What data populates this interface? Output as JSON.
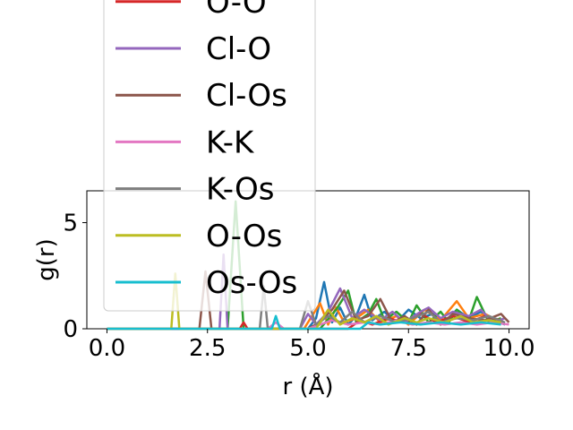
{
  "chart_data": {
    "type": "line",
    "xlabel": "r (Å)",
    "ylabel": "g(r)",
    "xlim": [
      -0.5,
      10.5
    ],
    "ylim": [
      0,
      6.5
    ],
    "xticks": [
      "0.0",
      "2.5",
      "5.0",
      "7.5",
      "10.0"
    ],
    "yticks": [
      "0",
      "5"
    ],
    "grid": false,
    "legend_placement": "upper-left, overflowing above the axes",
    "series": [
      {
        "name": "",
        "color": "#1f77b4",
        "points": [
          [
            0,
            0
          ],
          [
            5.0,
            0
          ],
          [
            5.2,
            0.5
          ],
          [
            5.4,
            2.2
          ],
          [
            5.6,
            0.3
          ],
          [
            5.8,
            1.0
          ],
          [
            6.0,
            0.2
          ],
          [
            6.2,
            0.6
          ],
          [
            6.4,
            1.6
          ],
          [
            6.6,
            0.4
          ],
          [
            6.9,
            0.8
          ],
          [
            7.2,
            0.3
          ],
          [
            7.5,
            0.9
          ],
          [
            7.8,
            0.5
          ],
          [
            8.1,
            0.7
          ],
          [
            8.4,
            0.3
          ],
          [
            8.7,
            0.9
          ],
          [
            9.0,
            0.5
          ],
          [
            9.3,
            0.8
          ],
          [
            9.6,
            0.4
          ],
          [
            9.9,
            0.2
          ]
        ]
      },
      {
        "name": "",
        "color": "#ff7f0e",
        "points": [
          [
            0,
            0
          ],
          [
            4.9,
            0
          ],
          [
            5.1,
            0.6
          ],
          [
            5.3,
            1.2
          ],
          [
            5.5,
            0.2
          ],
          [
            5.7,
            1.0
          ],
          [
            5.9,
            0.3
          ],
          [
            6.2,
            0.5
          ],
          [
            6.5,
            0.9
          ],
          [
            6.8,
            0.3
          ],
          [
            7.2,
            0.6
          ],
          [
            7.5,
            0.2
          ],
          [
            7.9,
            0.9
          ],
          [
            8.3,
            0.4
          ],
          [
            8.7,
            1.3
          ],
          [
            9.0,
            0.5
          ],
          [
            9.4,
            0.7
          ],
          [
            9.8,
            0.3
          ]
        ]
      },
      {
        "name": "",
        "color": "#2ca02c",
        "points": [
          [
            0,
            0
          ],
          [
            3.0,
            0
          ],
          [
            3.2,
            6.0
          ],
          [
            3.4,
            0
          ],
          [
            5.3,
            0
          ],
          [
            5.7,
            0.9
          ],
          [
            6.0,
            1.8
          ],
          [
            6.2,
            0.3
          ],
          [
            6.5,
            0.7
          ],
          [
            6.7,
            1.4
          ],
          [
            6.9,
            0.4
          ],
          [
            7.2,
            0.8
          ],
          [
            7.5,
            0.3
          ],
          [
            7.7,
            1.1
          ],
          [
            8.0,
            0.3
          ],
          [
            8.3,
            0.8
          ],
          [
            8.5,
            0.3
          ],
          [
            8.7,
            0.9
          ],
          [
            9.0,
            0.4
          ],
          [
            9.2,
            1.5
          ],
          [
            9.5,
            0.3
          ],
          [
            9.8,
            0.5
          ]
        ]
      },
      {
        "name": "O-O",
        "color": "#d62728",
        "points": [
          [
            0,
            0
          ],
          [
            3.3,
            0
          ],
          [
            3.4,
            0.3
          ],
          [
            3.5,
            0
          ],
          [
            6.0,
            0
          ],
          [
            6.3,
            0.4
          ],
          [
            6.6,
            0.2
          ],
          [
            7.0,
            0.5
          ],
          [
            7.4,
            0.3
          ],
          [
            7.8,
            0.7
          ],
          [
            8.2,
            0.3
          ],
          [
            8.6,
            0.6
          ],
          [
            9.0,
            0.3
          ],
          [
            9.4,
            0.6
          ],
          [
            9.8,
            0.4
          ]
        ]
      },
      {
        "name": "Cl-O",
        "color": "#9467bd",
        "points": [
          [
            0,
            0
          ],
          [
            2.8,
            0
          ],
          [
            2.9,
            3.5
          ],
          [
            3.0,
            0
          ],
          [
            4.8,
            0
          ],
          [
            5.0,
            0.7
          ],
          [
            5.2,
            0.2
          ],
          [
            5.5,
            0.8
          ],
          [
            5.8,
            1.9
          ],
          [
            6.1,
            0.5
          ],
          [
            6.4,
            0.9
          ],
          [
            6.8,
            0.4
          ],
          [
            7.1,
            0.8
          ],
          [
            7.4,
            0.3
          ],
          [
            7.8,
            0.8
          ],
          [
            8.0,
            1.0
          ],
          [
            8.3,
            0.5
          ],
          [
            8.6,
            0.8
          ],
          [
            9.0,
            0.6
          ],
          [
            9.3,
            0.9
          ],
          [
            9.6,
            0.3
          ],
          [
            9.9,
            0.5
          ]
        ]
      },
      {
        "name": "Cl-Os",
        "color": "#8c564b",
        "points": [
          [
            0,
            0
          ],
          [
            2.3,
            0
          ],
          [
            2.45,
            2.7
          ],
          [
            2.6,
            0
          ],
          [
            5.0,
            0
          ],
          [
            5.3,
            0.3
          ],
          [
            5.6,
            0.9
          ],
          [
            5.9,
            1.8
          ],
          [
            6.2,
            0.4
          ],
          [
            6.5,
            0.6
          ],
          [
            6.8,
            1.4
          ],
          [
            7.1,
            0.3
          ],
          [
            7.4,
            0.6
          ],
          [
            7.7,
            0.2
          ],
          [
            8.0,
            0.9
          ],
          [
            8.3,
            0.2
          ],
          [
            8.6,
            0.7
          ],
          [
            9.0,
            0.5
          ],
          [
            9.4,
            0.4
          ],
          [
            9.8,
            0.7
          ],
          [
            10.0,
            0.3
          ]
        ]
      },
      {
        "name": "K-K",
        "color": "#e377c2",
        "points": [
          [
            0,
            0
          ],
          [
            4.0,
            0
          ],
          [
            4.2,
            0.3
          ],
          [
            4.4,
            0
          ],
          [
            5.0,
            0
          ],
          [
            5.3,
            0.2
          ],
          [
            5.6,
            0.4
          ],
          [
            6.0,
            0.2
          ],
          [
            6.4,
            0.3
          ],
          [
            6.8,
            0.2
          ],
          [
            7.2,
            0.4
          ],
          [
            7.6,
            0.2
          ],
          [
            8.0,
            0.3
          ],
          [
            8.4,
            0.2
          ],
          [
            8.8,
            0.3
          ],
          [
            9.2,
            0.2
          ],
          [
            9.6,
            0.3
          ],
          [
            10.0,
            0.2
          ]
        ]
      },
      {
        "name": "K-Os",
        "color": "#7f7f7f",
        "points": [
          [
            0,
            0
          ],
          [
            3.8,
            0
          ],
          [
            3.9,
            2.0
          ],
          [
            4.0,
            0
          ],
          [
            4.8,
            0
          ],
          [
            5.0,
            1.3
          ],
          [
            5.2,
            0.2
          ],
          [
            5.5,
            0.6
          ],
          [
            5.8,
            0.3
          ],
          [
            6.1,
            0.8
          ],
          [
            6.4,
            0.3
          ],
          [
            6.8,
            0.6
          ],
          [
            7.2,
            0.3
          ],
          [
            7.6,
            0.5
          ],
          [
            8.0,
            0.8
          ],
          [
            8.3,
            0.3
          ],
          [
            8.7,
            0.5
          ],
          [
            9.1,
            0.4
          ],
          [
            9.5,
            0.6
          ],
          [
            9.9,
            0.3
          ]
        ]
      },
      {
        "name": "O-Os",
        "color": "#bcbd22",
        "points": [
          [
            0,
            0
          ],
          [
            1.6,
            0
          ],
          [
            1.7,
            2.6
          ],
          [
            1.8,
            0
          ],
          [
            5.2,
            0
          ],
          [
            5.5,
            0.9
          ],
          [
            5.8,
            0.2
          ],
          [
            6.1,
            0.5
          ],
          [
            6.4,
            0.3
          ],
          [
            6.7,
            0.6
          ],
          [
            7.0,
            0.2
          ],
          [
            7.4,
            0.5
          ],
          [
            7.7,
            0.3
          ],
          [
            8.0,
            0.5
          ],
          [
            8.4,
            0.3
          ],
          [
            8.8,
            0.6
          ],
          [
            9.1,
            0.3
          ],
          [
            9.5,
            0.4
          ],
          [
            9.8,
            0.3
          ]
        ]
      },
      {
        "name": "Os-Os",
        "color": "#17becf",
        "points": [
          [
            0,
            0
          ],
          [
            4.1,
            0
          ],
          [
            4.2,
            0.6
          ],
          [
            4.3,
            0
          ],
          [
            6.3,
            0
          ],
          [
            6.5,
            0.3
          ],
          [
            6.8,
            0.2
          ],
          [
            7.3,
            0.3
          ],
          [
            7.8,
            0.2
          ],
          [
            8.3,
            0.3
          ],
          [
            8.8,
            0.2
          ],
          [
            9.3,
            0.3
          ],
          [
            9.8,
            0.2
          ]
        ]
      }
    ]
  }
}
